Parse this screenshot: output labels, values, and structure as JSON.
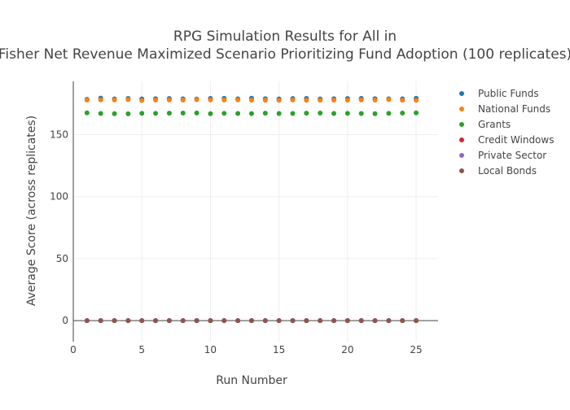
{
  "chart_data": {
    "type": "scatter",
    "title": "RPG Simulation Results for All in",
    "subtitle": "Fisher Net Revenue Maximized Scenario Prioritizing Fund Adoption (100 replicates)",
    "xlabel": "Run Number",
    "ylabel": "Average Score (across replicates)",
    "xlim": [
      0,
      26.6
    ],
    "ylim": [
      -17,
      193
    ],
    "x_ticks": [
      0,
      5,
      10,
      15,
      20,
      25
    ],
    "y_ticks": [
      0,
      50,
      100,
      150
    ],
    "grid": true,
    "legend_position": "right",
    "x": [
      1,
      2,
      3,
      4,
      5,
      6,
      7,
      8,
      9,
      10,
      11,
      12,
      13,
      14,
      15,
      16,
      17,
      18,
      19,
      20,
      21,
      22,
      23,
      24,
      25
    ],
    "series": [
      {
        "name": "Public Funds",
        "color": "#1f77b4",
        "values": [
          178.5,
          179.5,
          178.8,
          179.2,
          178.8,
          179.0,
          179.1,
          178.9,
          178.7,
          179.2,
          179.3,
          178.9,
          179.4,
          179.0,
          178.8,
          179.1,
          179.2,
          178.8,
          179.0,
          179.1,
          179.2,
          179.0,
          178.9,
          178.9,
          179.3
        ]
      },
      {
        "name": "National Funds",
        "color": "#ff7f0e",
        "values": [
          177.9,
          178.1,
          178.0,
          178.3,
          177.6,
          177.9,
          178.0,
          177.9,
          178.2,
          178.1,
          178.0,
          178.1,
          177.9,
          177.8,
          177.7,
          178.0,
          177.8,
          177.8,
          177.9,
          177.8,
          178.0,
          177.9,
          178.3,
          177.8,
          177.7
        ]
      },
      {
        "name": "Grants",
        "color": "#2ca02c",
        "values": [
          167.6,
          167.1,
          166.9,
          166.8,
          167.2,
          167.2,
          167.3,
          167.4,
          167.5,
          166.9,
          167.2,
          167.1,
          167.0,
          167.3,
          167.1,
          167.1,
          167.3,
          167.4,
          167.1,
          167.2,
          167.1,
          166.9,
          167.2,
          167.4,
          167.6
        ]
      },
      {
        "name": "Credit Windows",
        "color": "#d62728",
        "values": [
          0,
          0,
          0,
          0,
          0,
          0,
          0,
          0,
          0,
          0,
          0,
          0,
          0,
          0,
          0,
          0,
          0,
          0,
          0,
          0,
          0,
          0,
          0,
          0,
          0
        ]
      },
      {
        "name": "Private Sector",
        "color": "#9467bd",
        "values": [
          0,
          0,
          0,
          0,
          0,
          0,
          0,
          0,
          0,
          0,
          0,
          0,
          0,
          0,
          0,
          0,
          0,
          0,
          0,
          0,
          0,
          0,
          0,
          0,
          0
        ]
      },
      {
        "name": "Local Bonds",
        "color": "#8c564b",
        "values": [
          0,
          0,
          0,
          0,
          0,
          0,
          0,
          0,
          0,
          0,
          0,
          0,
          0,
          0,
          0,
          0,
          0,
          0,
          0,
          0,
          0,
          0,
          0,
          0,
          0
        ]
      }
    ]
  }
}
